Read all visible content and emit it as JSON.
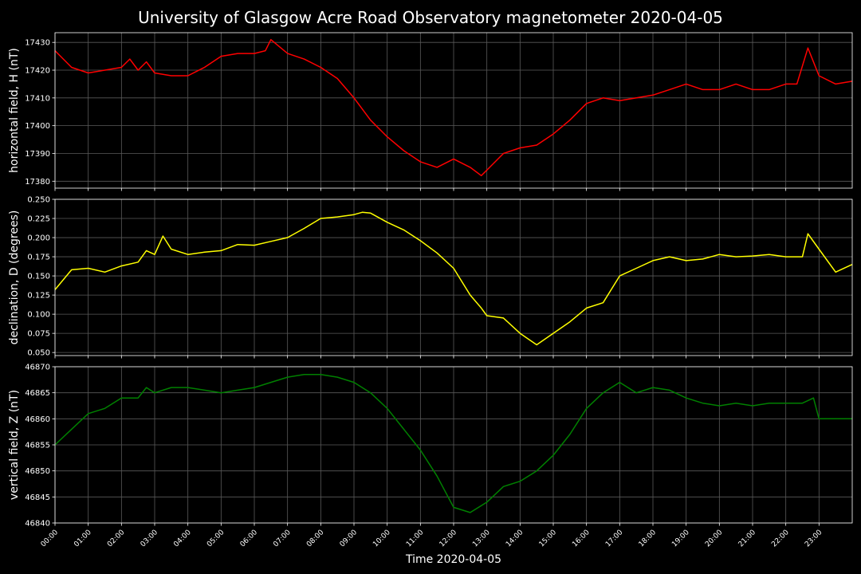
{
  "title": "University of Glasgow Acre Road Observatory magnetometer 2020-04-05",
  "colors": {
    "background": "#000000",
    "text": "#ffffff",
    "grid": "#5a5a5a",
    "frame": "#ffffff"
  },
  "chart_data": [
    {
      "type": "line",
      "ylabel": "horizontal field, H (nT)",
      "xlim": [
        "00:00",
        "24:00"
      ],
      "ylim": [
        17377.5,
        17433.5
      ],
      "yticks": [
        "17380",
        "17390",
        "17400",
        "17410",
        "17420",
        "17430"
      ],
      "grid": true,
      "series": [
        {
          "color": "#ff0000",
          "x": [
            "00:00",
            "00:30",
            "01:00",
            "01:30",
            "02:00",
            "02:15",
            "02:30",
            "02:45",
            "03:00",
            "03:30",
            "04:00",
            "04:30",
            "05:00",
            "05:30",
            "06:00",
            "06:20",
            "06:30",
            "07:00",
            "07:30",
            "08:00",
            "08:30",
            "09:00",
            "09:30",
            "10:00",
            "10:30",
            "11:00",
            "11:30",
            "12:00",
            "12:30",
            "12:50",
            "13:00",
            "13:30",
            "14:00",
            "14:30",
            "15:00",
            "15:30",
            "16:00",
            "16:30",
            "17:00",
            "17:30",
            "18:00",
            "18:30",
            "19:00",
            "19:30",
            "20:00",
            "20:30",
            "21:00",
            "21:30",
            "22:00",
            "22:20",
            "22:40",
            "23:00",
            "23:30",
            "24:00"
          ],
          "values": [
            17427,
            17421,
            17419,
            17420,
            17421,
            17424,
            17420,
            17423,
            17419,
            17418,
            17418,
            17421,
            17425,
            17426,
            17426,
            17427,
            17431,
            17426,
            17424,
            17421,
            17417,
            17410,
            17402,
            17396,
            17391,
            17387,
            17385,
            17388,
            17385,
            17382,
            17384,
            17390,
            17392,
            17393,
            17397,
            17402,
            17408,
            17410,
            17409,
            17410,
            17411,
            17413,
            17415,
            17413,
            17413,
            17415,
            17413,
            17413,
            17415,
            17415,
            17428,
            17418,
            17415,
            17416
          ]
        }
      ]
    },
    {
      "type": "line",
      "ylabel": "declination, D (degrees)",
      "xlim": [
        "00:00",
        "24:00"
      ],
      "ylim": [
        0.046,
        0.25
      ],
      "yticks": [
        "0.050",
        "0.075",
        "0.100",
        "0.125",
        "0.150",
        "0.175",
        "0.200",
        "0.225",
        "0.250"
      ],
      "grid": true,
      "series": [
        {
          "color": "#ffff00",
          "x": [
            "00:00",
            "00:30",
            "01:00",
            "01:30",
            "02:00",
            "02:30",
            "02:45",
            "03:00",
            "03:15",
            "03:30",
            "04:00",
            "04:30",
            "05:00",
            "05:30",
            "06:00",
            "06:30",
            "07:00",
            "07:30",
            "08:00",
            "08:30",
            "09:00",
            "09:15",
            "09:30",
            "10:00",
            "10:30",
            "11:00",
            "11:30",
            "12:00",
            "12:30",
            "12:50",
            "13:00",
            "13:30",
            "14:00",
            "14:30",
            "15:00",
            "15:30",
            "16:00",
            "16:30",
            "17:00",
            "17:30",
            "18:00",
            "18:30",
            "19:00",
            "19:30",
            "20:00",
            "20:30",
            "21:00",
            "21:30",
            "22:00",
            "22:30",
            "22:40",
            "23:00",
            "23:30",
            "24:00"
          ],
          "values": [
            0.132,
            0.158,
            0.16,
            0.155,
            0.163,
            0.168,
            0.183,
            0.178,
            0.202,
            0.185,
            0.178,
            0.181,
            0.183,
            0.191,
            0.19,
            0.195,
            0.2,
            0.212,
            0.225,
            0.227,
            0.23,
            0.233,
            0.232,
            0.22,
            0.21,
            0.196,
            0.18,
            0.16,
            0.125,
            0.108,
            0.098,
            0.095,
            0.075,
            0.06,
            0.075,
            0.09,
            0.108,
            0.115,
            0.15,
            0.16,
            0.17,
            0.175,
            0.17,
            0.172,
            0.178,
            0.175,
            0.176,
            0.178,
            0.175,
            0.175,
            0.205,
            0.185,
            0.155,
            0.165
          ]
        }
      ]
    },
    {
      "type": "line",
      "ylabel": "vertical field, Z (nT)",
      "xlabel": "Time 2020-04-05",
      "xlim": [
        "00:00",
        "24:00"
      ],
      "ylim": [
        46840,
        46870
      ],
      "yticks": [
        "46840",
        "46845",
        "46850",
        "46855",
        "46860",
        "46865",
        "46870"
      ],
      "xticks": [
        "00:00",
        "01:00",
        "02:00",
        "03:00",
        "04:00",
        "05:00",
        "06:00",
        "07:00",
        "08:00",
        "09:00",
        "10:00",
        "11:00",
        "12:00",
        "13:00",
        "14:00",
        "15:00",
        "16:00",
        "17:00",
        "18:00",
        "19:00",
        "20:00",
        "21:00",
        "22:00",
        "23:00"
      ],
      "grid": true,
      "series": [
        {
          "color": "#008000",
          "x": [
            "00:00",
            "00:30",
            "01:00",
            "01:30",
            "02:00",
            "02:30",
            "02:45",
            "03:00",
            "03:30",
            "04:00",
            "04:30",
            "05:00",
            "05:30",
            "06:00",
            "06:30",
            "07:00",
            "07:30",
            "08:00",
            "08:30",
            "09:00",
            "09:30",
            "10:00",
            "10:30",
            "11:00",
            "11:30",
            "12:00",
            "12:30",
            "13:00",
            "13:30",
            "14:00",
            "14:30",
            "15:00",
            "15:30",
            "16:00",
            "16:30",
            "17:00",
            "17:30",
            "18:00",
            "18:30",
            "19:00",
            "19:30",
            "20:00",
            "20:30",
            "21:00",
            "21:30",
            "22:00",
            "22:30",
            "22:50",
            "23:00",
            "23:30",
            "24:00"
          ],
          "values": [
            46855,
            46858,
            46861,
            46862,
            46864,
            46864,
            46866,
            46865,
            46866,
            46866,
            46865.5,
            46865,
            46865.5,
            46866,
            46867,
            46868,
            46868.5,
            46868.5,
            46868,
            46867,
            46865,
            46862,
            46858,
            46854,
            46849,
            46843,
            46842,
            46844,
            46847,
            46848,
            46850,
            46853,
            46857,
            46862,
            46865,
            46867,
            46865,
            46866,
            46865.5,
            46864,
            46863,
            46862.5,
            46863,
            46862.5,
            46863,
            46863,
            46863,
            46864,
            46860,
            46860,
            46860
          ]
        }
      ]
    }
  ]
}
